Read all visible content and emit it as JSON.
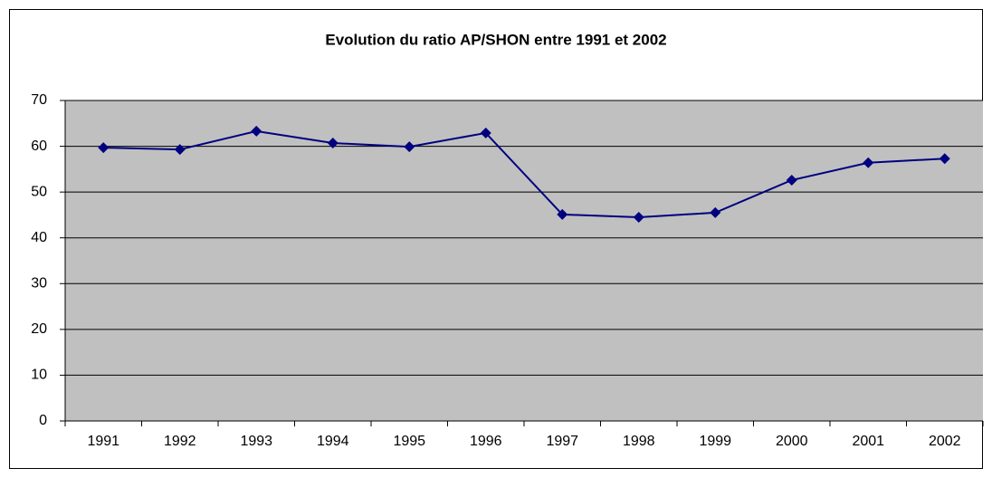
{
  "chart_data": {
    "type": "line",
    "title": "Evolution du ratio AP/SHON entre 1991 et 2002",
    "categories": [
      "1991",
      "1992",
      "1993",
      "1994",
      "1995",
      "1996",
      "1997",
      "1998",
      "1999",
      "2000",
      "2001",
      "2002"
    ],
    "series": [
      {
        "name": "AP/SHON",
        "color": "#000080",
        "values": [
          59.7,
          59.3,
          63.3,
          60.7,
          59.9,
          62.9,
          45.1,
          44.5,
          45.5,
          52.6,
          56.4,
          57.3
        ]
      }
    ],
    "ylim": [
      0,
      70
    ],
    "yticks": [
      0,
      10,
      20,
      30,
      40,
      50,
      60,
      70
    ],
    "grid": true
  }
}
